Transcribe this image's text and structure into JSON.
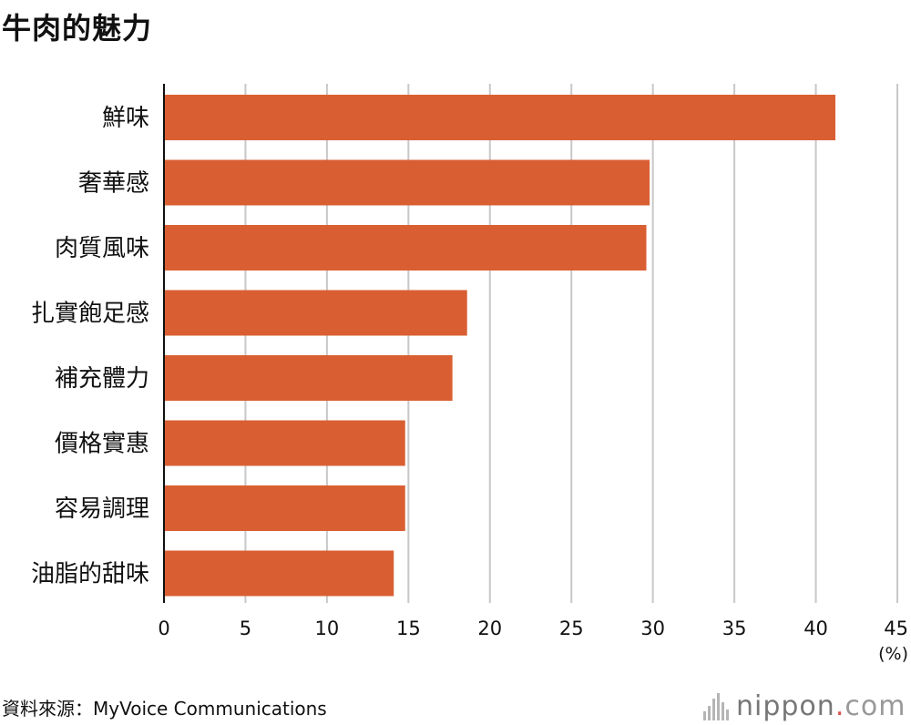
{
  "title": "牛肉的魅力",
  "source": "資料來源：MyVoice Communications",
  "logo": {
    "name": "nippon",
    "dot": ".",
    "tld": "com"
  },
  "colors": {
    "bar": "#d95f33",
    "grid": "#c8c8c8",
    "axis": "#111111"
  },
  "chart_data": {
    "type": "bar",
    "orientation": "horizontal",
    "categories": [
      "鮮味",
      "奢華感",
      "肉質風味",
      "扎實飽足感",
      "補充體力",
      "價格實惠",
      "容易調理",
      "油脂的甜味"
    ],
    "values": [
      41.2,
      29.8,
      29.6,
      18.6,
      17.7,
      14.8,
      14.8,
      14.1
    ],
    "xlim": [
      0,
      45
    ],
    "ticks": [
      0,
      5,
      10,
      15,
      20,
      25,
      30,
      35,
      40,
      45
    ],
    "unit_label": "(%)",
    "grid": true
  }
}
